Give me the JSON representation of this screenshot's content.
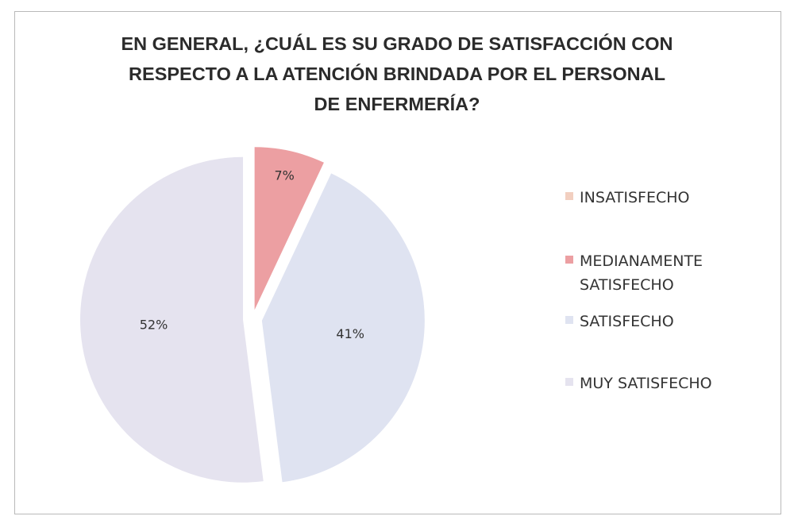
{
  "chart_data": {
    "type": "pie",
    "title": "EN GENERAL, ¿CUÁL ES SU GRADO DE SATISFACCIÓN CON RESPECTO A LA ATENCIÓN BRINDADA POR EL PERSONAL DE ENFERMERÍA?",
    "categories": [
      "INSATISFECHO",
      "MEDIANAMENTE SATISFECHO",
      "SATISFECHO",
      "MUY SATISFECHO"
    ],
    "values": [
      0,
      7,
      41,
      52
    ],
    "value_labels": [
      null,
      "7%",
      "41%",
      "52%"
    ],
    "colors": [
      "#f2cfc0",
      "#ec9fa2",
      "#dfe3f1",
      "#e5e3ef"
    ],
    "legend": "right"
  }
}
